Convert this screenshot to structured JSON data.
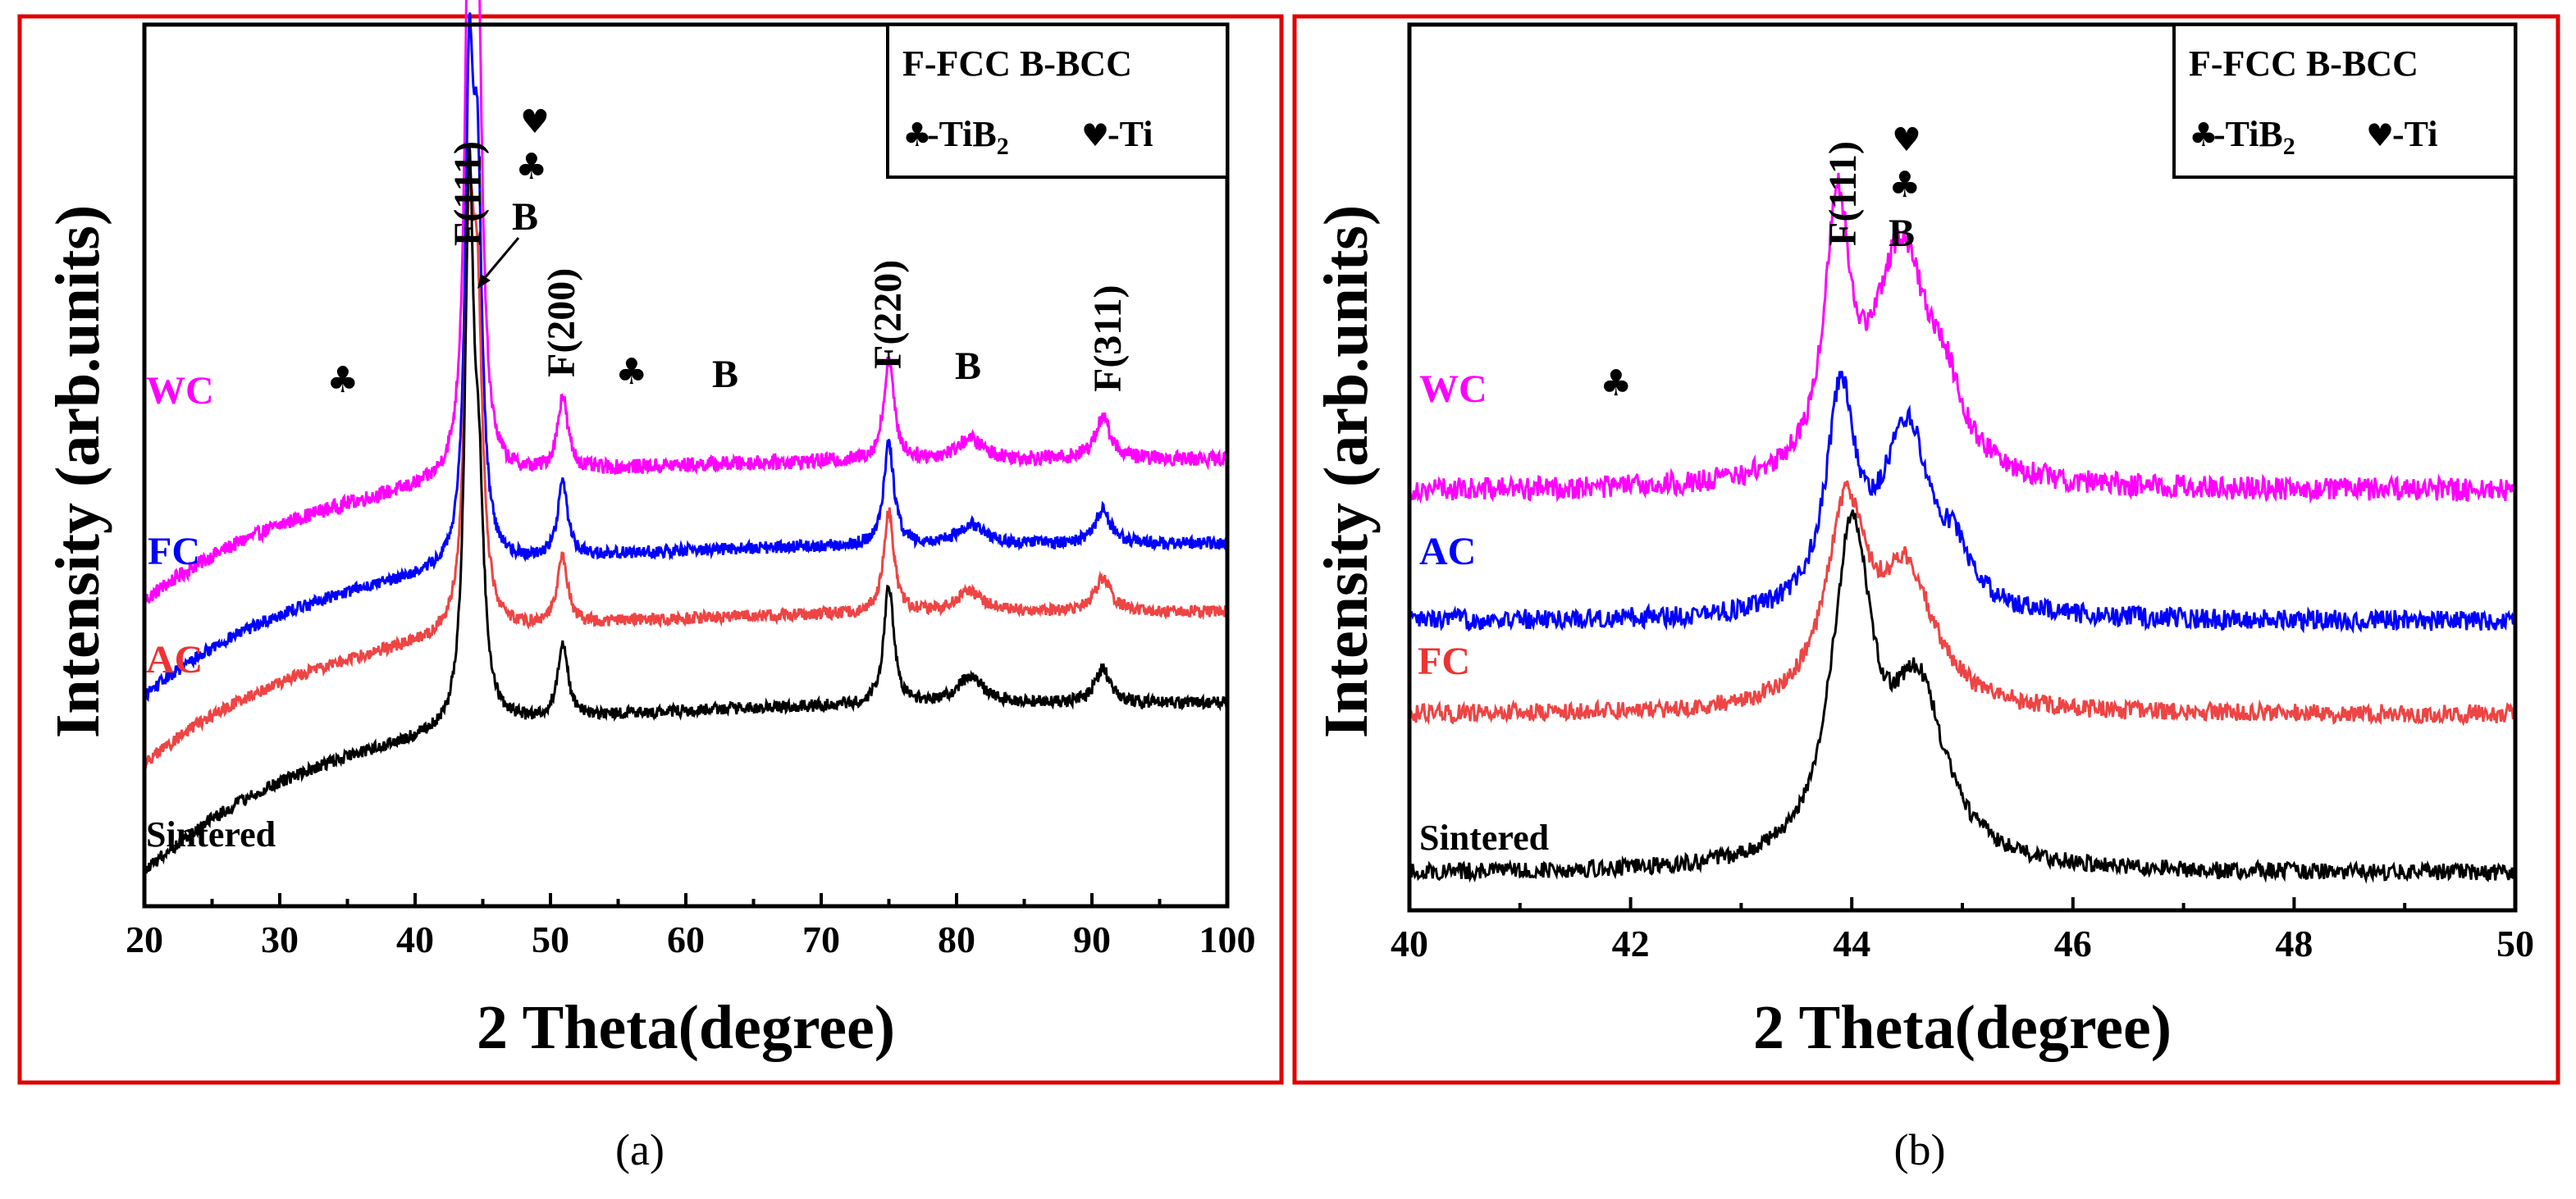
{
  "chart_data": [
    {
      "panel": "a",
      "type": "line",
      "caption": "(a)",
      "xlabel": "2 Theta(degree)",
      "ylabel": "Intensity (arb.units)",
      "xlim": [
        20,
        100
      ],
      "xticks": [
        20,
        30,
        40,
        50,
        60,
        70,
        80,
        90,
        100
      ],
      "legend": {
        "line1": "F-FCC B-BCC",
        "tib2_prefix": "-TiB",
        "tib2_sub": "2",
        "ti_text": "-Ti"
      },
      "series": [
        {
          "name": "WC",
          "color": "#ff00ff",
          "baseline": 0.9,
          "rise": 0.42,
          "noise": 0.022,
          "peaks": [
            [
              44.0,
              1.6,
              0.35
            ],
            [
              44.6,
              1.35,
              0.4
            ],
            [
              50.9,
              0.22,
              0.45
            ],
            [
              75.0,
              0.3,
              0.45
            ],
            [
              81.0,
              0.06,
              1.2
            ],
            [
              90.8,
              0.12,
              0.7
            ]
          ]
        },
        {
          "name": "FC",
          "color": "#0000ff",
          "baseline": 0.62,
          "rise": 0.45,
          "noise": 0.018,
          "peaks": [
            [
              44.0,
              1.3,
              0.35
            ],
            [
              44.6,
              1.05,
              0.4
            ],
            [
              50.9,
              0.22,
              0.45
            ],
            [
              75.0,
              0.3,
              0.45
            ],
            [
              81.0,
              0.06,
              1.2
            ],
            [
              90.8,
              0.1,
              0.7
            ]
          ]
        },
        {
          "name": "AC",
          "color": "#ee4444",
          "baseline": 0.42,
          "rise": 0.45,
          "noise": 0.018,
          "peaks": [
            [
              44.0,
              1.05,
              0.4
            ],
            [
              44.6,
              0.85,
              0.45
            ],
            [
              50.9,
              0.2,
              0.45
            ],
            [
              75.0,
              0.3,
              0.45
            ],
            [
              81.0,
              0.06,
              1.2
            ],
            [
              90.8,
              0.1,
              0.7
            ]
          ]
        },
        {
          "name": "Sintered",
          "color": "#000000",
          "baseline": 0.1,
          "rise": 0.5,
          "noise": 0.018,
          "peaks": [
            [
              44.0,
              1.55,
              0.38
            ],
            [
              44.7,
              0.6,
              0.45
            ],
            [
              50.9,
              0.22,
              0.45
            ],
            [
              75.0,
              0.35,
              0.45
            ],
            [
              81.0,
              0.08,
              1.2
            ],
            [
              90.8,
              0.1,
              0.7
            ]
          ]
        }
      ],
      "peak_labels": [
        "F(111)",
        "B",
        "F(200)",
        "B",
        "F(220)",
        "B",
        "F(311)"
      ]
    },
    {
      "panel": "b",
      "type": "line",
      "caption": "(b)",
      "xlabel": "2 Theta(degree)",
      "ylabel": "Intensity (arb.units)",
      "xlim": [
        40,
        50
      ],
      "xticks": [
        40,
        42,
        44,
        46,
        48,
        50
      ],
      "legend": {
        "line1": "F-FCC B-BCC",
        "tib2_prefix": "-TiB",
        "tib2_sub": "2",
        "ti_text": "-Ti"
      },
      "series": [
        {
          "name": "WC",
          "color": "#ff00ff",
          "baseline": 0.9,
          "rise": 0.0,
          "noise": 0.025,
          "peaks": [
            [
              43.87,
              0.55,
              0.14
            ],
            [
              44.45,
              0.5,
              0.3
            ],
            [
              44.85,
              0.12,
              0.18
            ]
          ]
        },
        {
          "name": "AC",
          "color": "#0000ff",
          "baseline": 0.62,
          "rise": 0.0,
          "noise": 0.022,
          "peaks": [
            [
              43.9,
              0.45,
              0.16
            ],
            [
              44.5,
              0.4,
              0.28
            ],
            [
              44.95,
              0.08,
              0.15
            ]
          ]
        },
        {
          "name": "FC",
          "color": "#ee4444",
          "baseline": 0.42,
          "rise": 0.0,
          "noise": 0.02,
          "peaks": [
            [
              43.95,
              0.42,
              0.22
            ],
            [
              44.5,
              0.28,
              0.3
            ]
          ]
        },
        {
          "name": "Sintered",
          "color": "#000000",
          "baseline": 0.08,
          "rise": 0.0,
          "noise": 0.018,
          "peaks": [
            [
              44.0,
              0.7,
              0.22
            ],
            [
              44.6,
              0.36,
              0.3
            ]
          ]
        }
      ],
      "peak_labels": [
        "F(111)",
        "B"
      ]
    }
  ]
}
